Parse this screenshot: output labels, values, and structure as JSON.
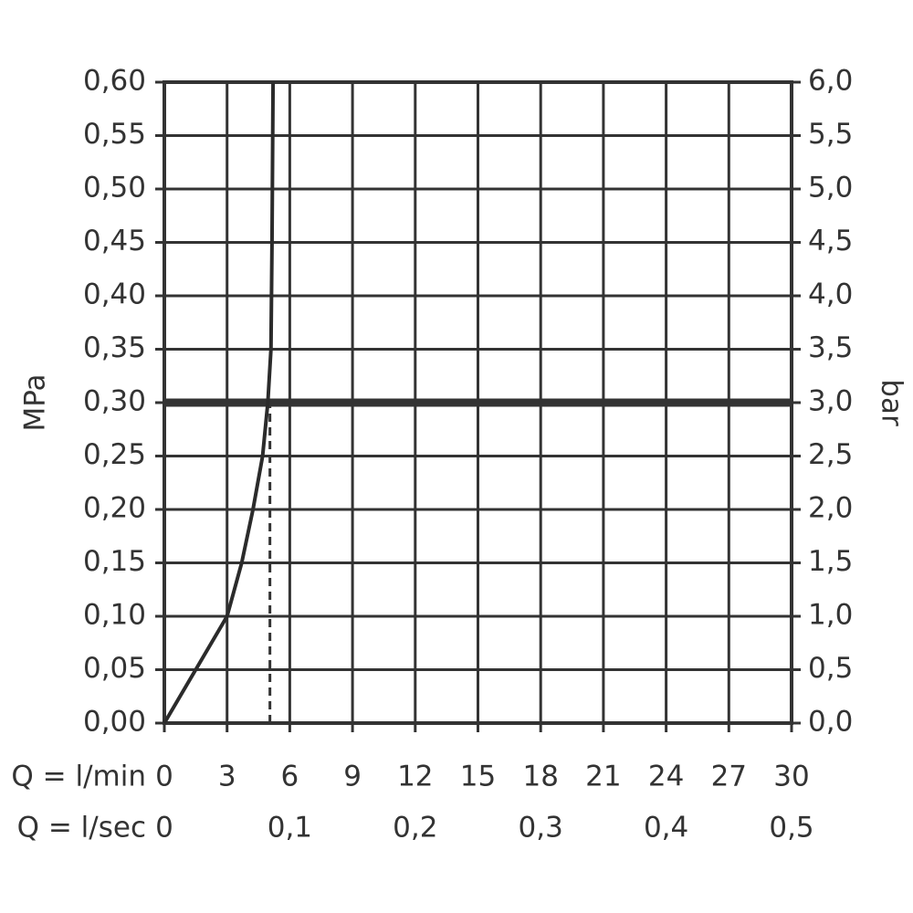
{
  "chart_data": {
    "type": "line",
    "y_label": "MPa",
    "y2_label": "bar",
    "x_label": "Q = l/min",
    "x2_label": "Q = l/sec",
    "xlim": [
      0,
      30
    ],
    "xticks": [
      0,
      3,
      6,
      9,
      12,
      15,
      18,
      21,
      24,
      27,
      30
    ],
    "x2lim": [
      0,
      0.5
    ],
    "x2ticks": [
      0,
      {
        "value": 0.1,
        "label": "0,1"
      },
      {
        "value": 0.2,
        "label": "0,2"
      },
      {
        "value": 0.3,
        "label": "0,3"
      },
      {
        "value": 0.4,
        "label": "0,4"
      },
      {
        "value": 0.5,
        "label": "0,5"
      }
    ],
    "ylim": [
      0,
      0.6
    ],
    "yticks": [
      {
        "value": 0,
        "label": "0,00"
      },
      {
        "value": 0.05,
        "label": "0,05"
      },
      {
        "value": 0.1,
        "label": "0,10"
      },
      {
        "value": 0.15,
        "label": "0,15"
      },
      {
        "value": 0.2,
        "label": "0,20"
      },
      {
        "value": 0.25,
        "label": "0,25"
      },
      {
        "value": 0.3,
        "label": "0,30"
      },
      {
        "value": 0.35,
        "label": "0,35"
      },
      {
        "value": 0.4,
        "label": "0,40"
      },
      {
        "value": 0.45,
        "label": "0,45"
      },
      {
        "value": 0.5,
        "label": "0,50"
      },
      {
        "value": 0.55,
        "label": "0,55"
      },
      {
        "value": 0.6,
        "label": "0,60"
      }
    ],
    "y2lim": [
      0,
      6
    ],
    "y2ticks": [
      {
        "value": 0,
        "label": "0,0"
      },
      {
        "value": 0.5,
        "label": "0,5"
      },
      {
        "value": 1,
        "label": "1,0"
      },
      {
        "value": 1.5,
        "label": "1,5"
      },
      {
        "value": 2,
        "label": "2,0"
      },
      {
        "value": 2.5,
        "label": "2,5"
      },
      {
        "value": 3,
        "label": "3,0"
      },
      {
        "value": 3.5,
        "label": "3,5"
      },
      {
        "value": 4,
        "label": "4,0"
      },
      {
        "value": 4.5,
        "label": "4,5"
      },
      {
        "value": 5,
        "label": "5,0"
      },
      {
        "value": 5.5,
        "label": "5,5"
      },
      {
        "value": 6,
        "label": "6,0"
      }
    ],
    "grid": true,
    "series": [
      {
        "color": "#2b2b2b",
        "x": [
          0,
          1.5,
          3,
          3.7,
          4.24,
          4.7,
          4.95,
          5.1,
          5.15,
          5.2
        ],
        "values": [
          0,
          0.05,
          0.1,
          0.15,
          0.2,
          0.25,
          0.3,
          0.35,
          0.45,
          0.6
        ]
      }
    ],
    "hline": 0.3,
    "vline": 5.05
  }
}
